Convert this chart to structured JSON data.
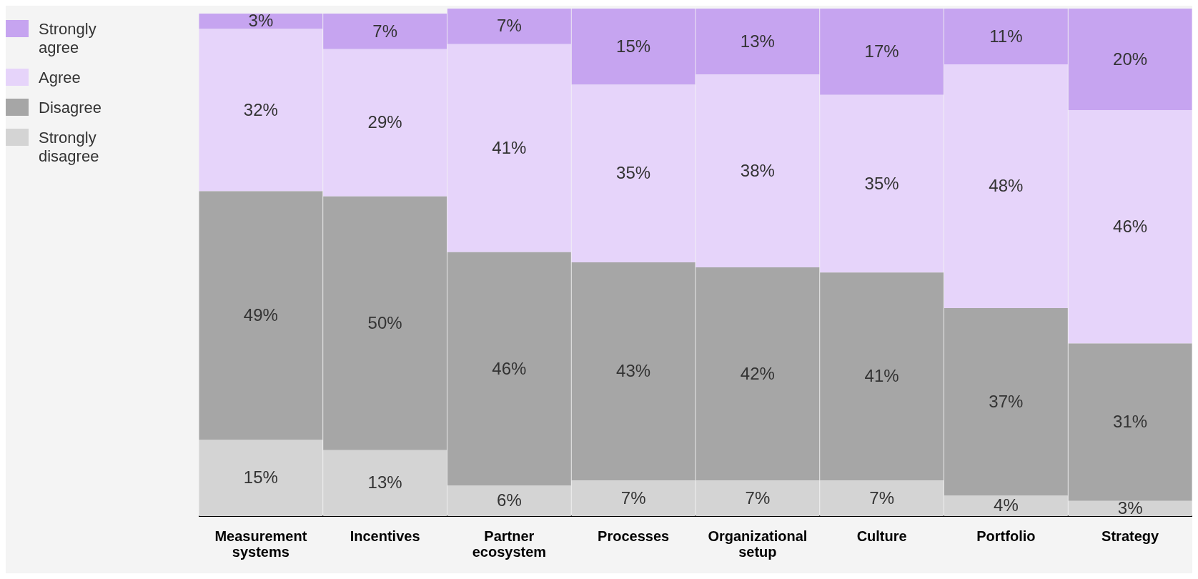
{
  "chart_data": {
    "type": "bar",
    "stacked": true,
    "legend": "left",
    "grid": false,
    "categories": [
      "Measurement systems",
      "Incentives",
      "Partner ecosystem",
      "Processes",
      "Organizational setup",
      "Culture",
      "Portfolio",
      "Strategy"
    ],
    "series": [
      {
        "name": "Strongly disagree",
        "color": "#d4d4d4",
        "values": [
          15,
          13,
          6,
          7,
          7,
          7,
          4,
          3
        ],
        "value_labels": [
          "15%",
          "13%",
          "6%",
          "7%",
          "7%",
          "7%",
          "4%",
          "3%"
        ]
      },
      {
        "name": "Disagree",
        "color": "#a6a6a6",
        "values": [
          49,
          50,
          46,
          43,
          42,
          41,
          37,
          31
        ],
        "value_labels": [
          "49%",
          "50%",
          "46%",
          "43%",
          "42%",
          "41%",
          "37%",
          "31%"
        ]
      },
      {
        "name": "Agree",
        "color": "#e6d4fa",
        "values": [
          32,
          29,
          41,
          35,
          38,
          35,
          48,
          46
        ],
        "value_labels": [
          "32%",
          "29%",
          "41%",
          "35%",
          "38%",
          "35%",
          "48%",
          "46%"
        ]
      },
      {
        "name": "Strongly agree",
        "color": "#c6a4f0",
        "values": [
          3,
          7,
          7,
          15,
          13,
          17,
          11,
          20
        ],
        "value_labels": [
          "3%",
          "7%",
          "7%",
          "15%",
          "13%",
          "17%",
          "11%",
          "20%"
        ]
      }
    ]
  }
}
